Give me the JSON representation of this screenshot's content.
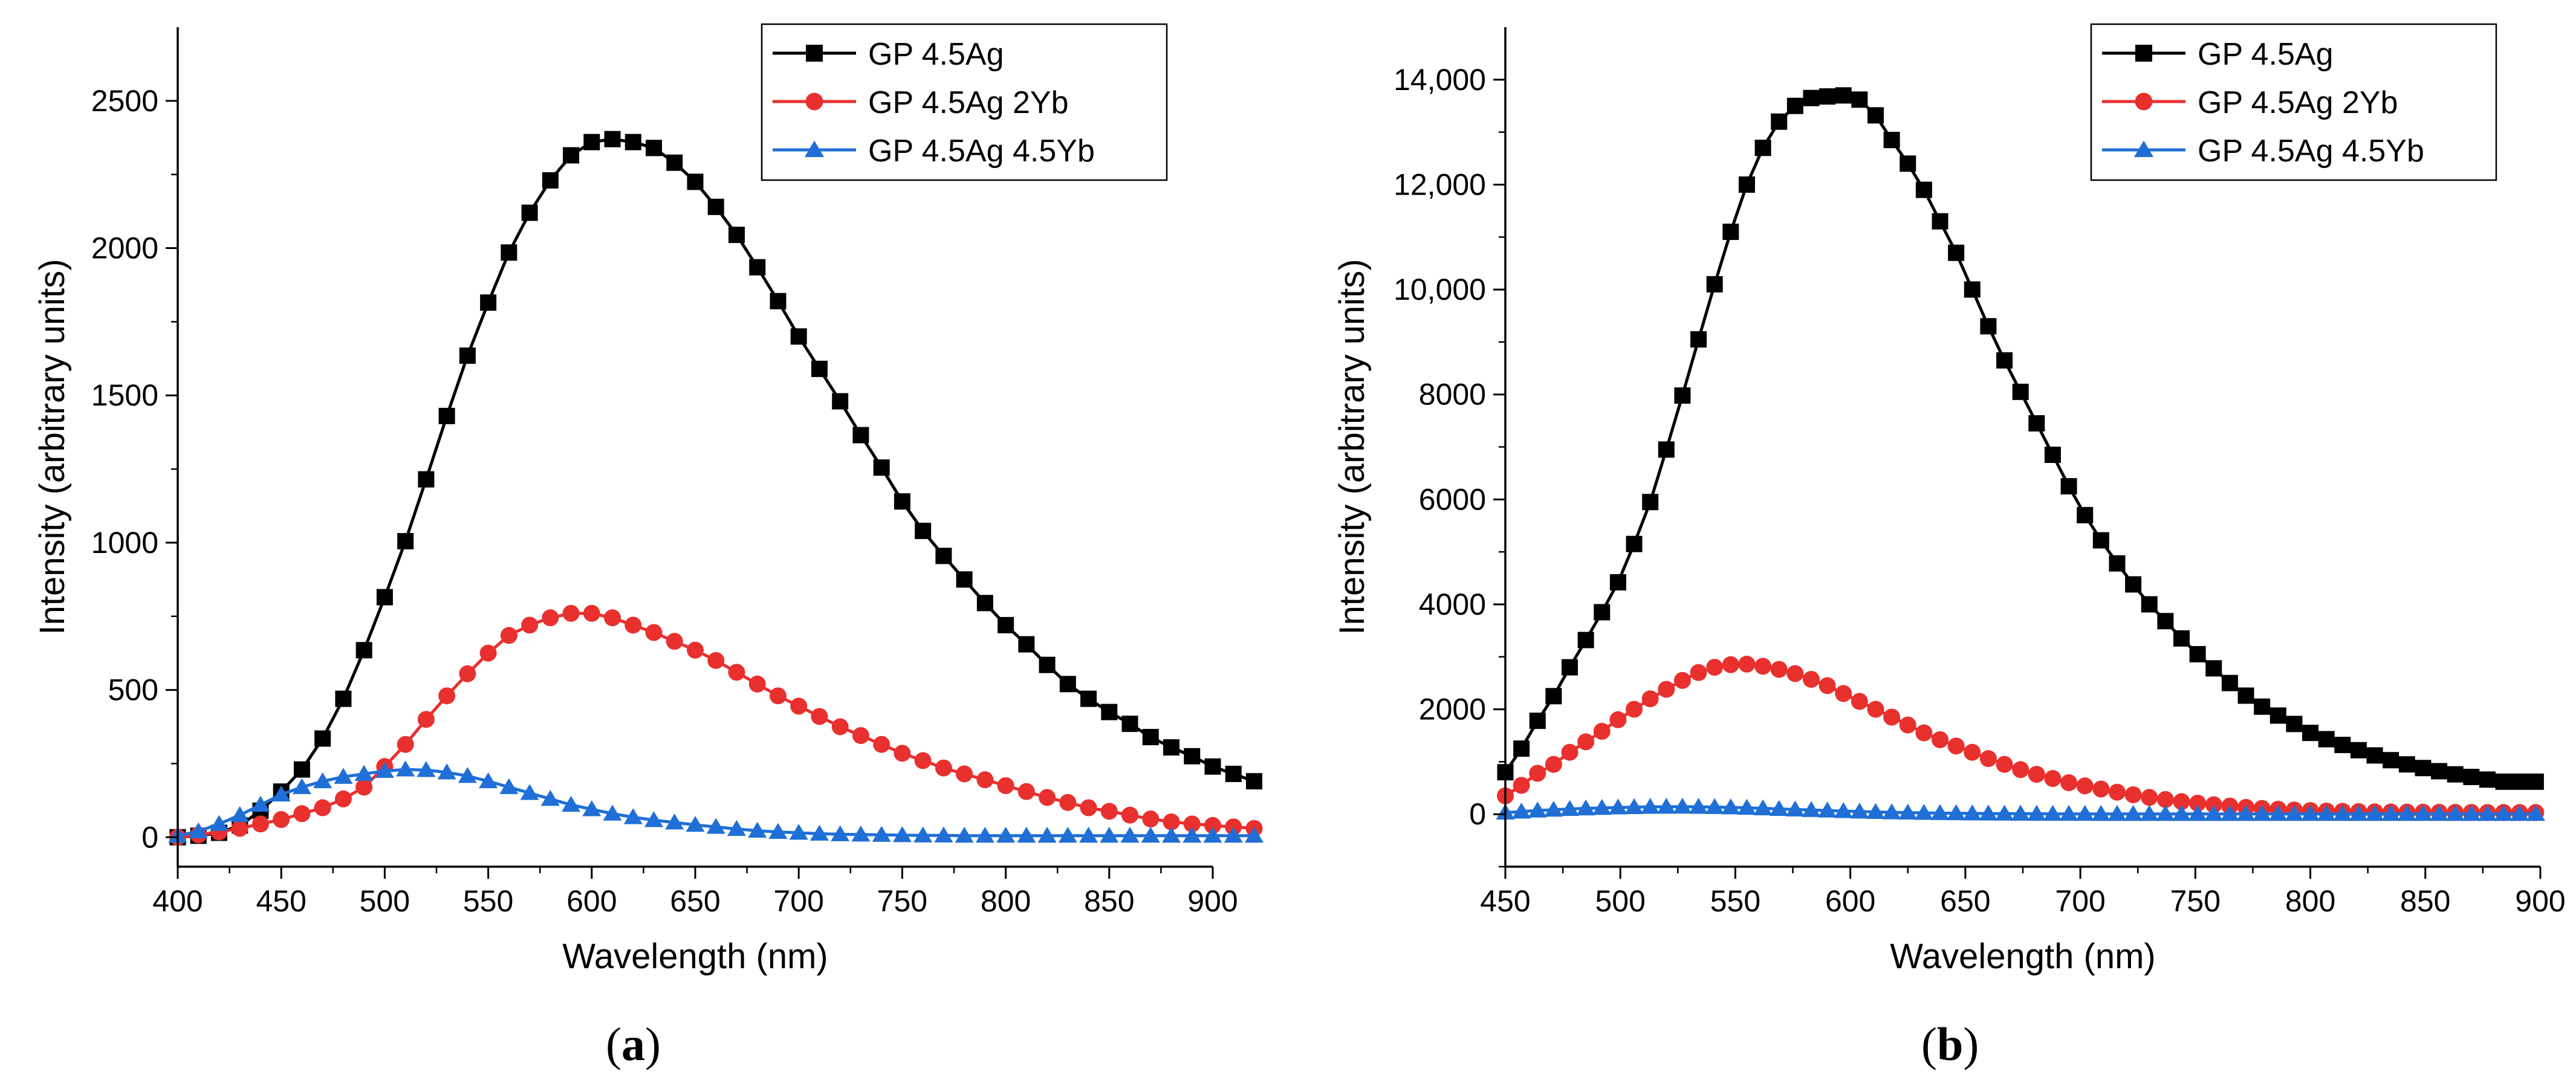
{
  "chart_data": [
    {
      "type": "line",
      "panel_label": "a",
      "xlabel": "Wavelength (nm)",
      "ylabel": "Intensity (arbitrary units)",
      "xlim": [
        400,
        900
      ],
      "ylim": [
        -100,
        2750
      ],
      "x_ticks": [
        400,
        450,
        500,
        550,
        600,
        650,
        700,
        750,
        800,
        850,
        900
      ],
      "y_ticks": [
        0,
        500,
        1000,
        1500,
        2000,
        2500
      ],
      "y_tick_labels": [
        "0",
        "500",
        "1000",
        "1500",
        "2000",
        "2500"
      ],
      "legend_position": "top-right",
      "x_start": 400,
      "x_step": 10,
      "series": [
        {
          "name": "GP 4.5Ag",
          "color": "#000000",
          "marker": "square",
          "values": [
            0,
            5,
            15,
            40,
            90,
            155,
            230,
            335,
            470,
            635,
            815,
            1005,
            1215,
            1430,
            1635,
            1815,
            1985,
            2120,
            2230,
            2315,
            2360,
            2370,
            2360,
            2340,
            2290,
            2225,
            2140,
            2045,
            1935,
            1820,
            1700,
            1590,
            1480,
            1365,
            1255,
            1140,
            1040,
            955,
            875,
            795,
            720,
            655,
            585,
            520,
            470,
            425,
            385,
            340,
            305,
            275,
            240,
            215,
            190
          ]
        },
        {
          "name": "GP 4.5Ag 2Yb",
          "color": "#e8302e",
          "marker": "circle",
          "values": [
            0,
            8,
            18,
            30,
            45,
            60,
            80,
            100,
            130,
            170,
            240,
            315,
            400,
            480,
            555,
            625,
            685,
            720,
            745,
            760,
            760,
            745,
            720,
            695,
            665,
            635,
            600,
            560,
            520,
            480,
            445,
            410,
            375,
            345,
            315,
            285,
            260,
            235,
            215,
            195,
            175,
            155,
            135,
            118,
            100,
            88,
            75,
            62,
            52,
            45,
            40,
            35,
            30
          ]
        },
        {
          "name": "GP 4.5Ag 4.5Yb",
          "color": "#1f6fd6",
          "marker": "triangle",
          "values": [
            5,
            20,
            45,
            75,
            110,
            145,
            170,
            190,
            205,
            215,
            225,
            230,
            228,
            220,
            208,
            190,
            170,
            150,
            130,
            110,
            95,
            80,
            68,
            58,
            50,
            42,
            35,
            28,
            22,
            18,
            15,
            12,
            10,
            9,
            8,
            7,
            6,
            6,
            5,
            5,
            5,
            5,
            5,
            5,
            5,
            5,
            5,
            5,
            5,
            5,
            5,
            5,
            5
          ]
        }
      ]
    },
    {
      "type": "line",
      "panel_label": "b",
      "xlabel": "Wavelength (nm)",
      "ylabel": "Intensity (arbitrary units)",
      "xlim": [
        450,
        900
      ],
      "ylim": [
        -1000,
        15000
      ],
      "x_ticks": [
        450,
        500,
        550,
        600,
        650,
        700,
        750,
        800,
        850,
        900
      ],
      "y_ticks": [
        0,
        2000,
        4000,
        6000,
        8000,
        10000,
        12000,
        14000
      ],
      "y_tick_labels": [
        "0",
        "2000",
        "4000",
        "6000",
        "8000",
        "10,000",
        "12,000",
        "14,000"
      ],
      "legend_position": "top-right",
      "x_start": 450,
      "x_step": 7,
      "series": [
        {
          "name": "GP 4.5Ag",
          "color": "#000000",
          "marker": "square",
          "values": [
            800,
            1250,
            1780,
            2250,
            2800,
            3320,
            3850,
            4420,
            5150,
            5950,
            6950,
            7980,
            9050,
            10100,
            11100,
            12000,
            12700,
            13200,
            13500,
            13650,
            13680,
            13700,
            13620,
            13320,
            12850,
            12400,
            11900,
            11300,
            10700,
            10000,
            9300,
            8650,
            8050,
            7450,
            6850,
            6250,
            5700,
            5220,
            4780,
            4380,
            4000,
            3680,
            3350,
            3050,
            2780,
            2500,
            2260,
            2050,
            1880,
            1720,
            1550,
            1430,
            1320,
            1220,
            1120,
            1030,
            950,
            880,
            820,
            760,
            710,
            660,
            620,
            620,
            620
          ]
        },
        {
          "name": "GP 4.5Ag 2Yb",
          "color": "#e8302e",
          "marker": "circle",
          "values": [
            350,
            550,
            780,
            950,
            1180,
            1380,
            1580,
            1800,
            2000,
            2200,
            2380,
            2550,
            2700,
            2800,
            2850,
            2860,
            2820,
            2760,
            2680,
            2570,
            2450,
            2300,
            2150,
            2000,
            1850,
            1700,
            1550,
            1420,
            1300,
            1180,
            1060,
            950,
            850,
            760,
            680,
            600,
            540,
            480,
            420,
            370,
            320,
            280,
            240,
            210,
            180,
            155,
            130,
            110,
            95,
            80,
            70,
            60,
            55,
            50,
            45,
            42,
            40,
            38,
            36,
            35,
            34,
            33,
            32,
            32,
            32
          ]
        },
        {
          "name": "GP 4.5Ag 4.5Yb",
          "color": "#1f6fd6",
          "marker": "triangle",
          "values": [
            30,
            50,
            70,
            85,
            100,
            110,
            120,
            128,
            135,
            140,
            142,
            143,
            140,
            136,
            130,
            122,
            112,
            100,
            90,
            80,
            70,
            60,
            50,
            42,
            35,
            30,
            25,
            21,
            18,
            15,
            12,
            10,
            9,
            8,
            7,
            6,
            6,
            5,
            5,
            5,
            5,
            5,
            5,
            5,
            5,
            5,
            5,
            5,
            5,
            5,
            5,
            5,
            5,
            5,
            5,
            5,
            5,
            5,
            5,
            5,
            5,
            5,
            5,
            5,
            5
          ]
        }
      ]
    }
  ]
}
